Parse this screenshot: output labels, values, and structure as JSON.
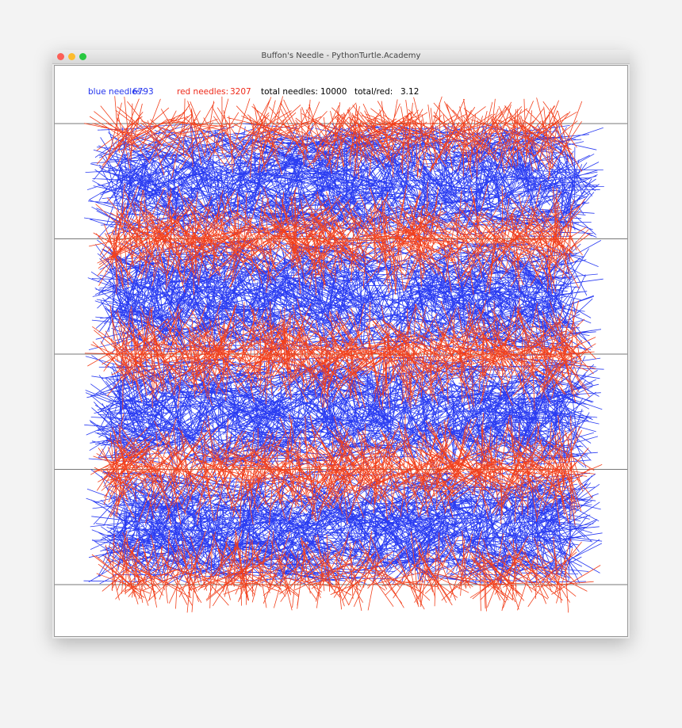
{
  "window": {
    "title": "Buffon's Needle - PythonTurtle.Academy"
  },
  "stats": [
    {
      "label": "blue needles:",
      "value": 6793
    },
    {
      "label": "red needles:",
      "value": 3207
    },
    {
      "label": "total needles:",
      "value": 10000
    },
    {
      "label": "total/red:",
      "value": 3.12
    }
  ]
}
